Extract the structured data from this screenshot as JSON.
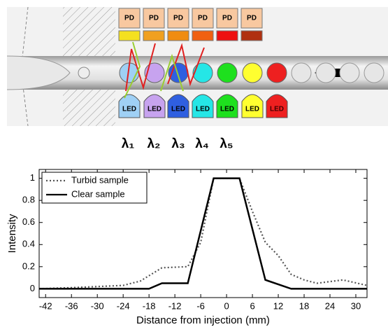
{
  "diagram": {
    "pd_labels": [
      "PD",
      "PD",
      "PD",
      "PD",
      "PD",
      "PD"
    ],
    "led_labels": [
      "LED",
      "LED",
      "LED",
      "LED",
      "LED",
      "LED",
      "LED"
    ],
    "wavelengths": [
      "λ₁",
      "λ₂",
      "λ₃",
      "λ₄",
      "λ₅"
    ]
  },
  "chart_data": {
    "type": "line",
    "xlabel": "Distance from injection (mm)",
    "ylabel": "Intensity",
    "xlim": [
      -43.5,
      32.6
    ],
    "ylim": [
      -0.08,
      1.08
    ],
    "xticks": [
      -42,
      -36,
      -30,
      -24,
      -18,
      -12,
      -6,
      0,
      6,
      12,
      18,
      24,
      30
    ],
    "yticks": [
      0,
      0.2,
      0.4,
      0.6,
      0.8,
      1
    ],
    "legend": "upper left",
    "series": [
      {
        "name": "Turbid sample",
        "color": "#555555",
        "style": "dotted",
        "x": [
          -43.5,
          -36,
          -24,
          -20,
          -15,
          -9,
          -6,
          -3,
          3,
          6,
          9,
          12,
          15,
          18,
          21,
          27,
          32.6
        ],
        "values": [
          0,
          0.01,
          0.03,
          0.07,
          0.19,
          0.2,
          0.42,
          1,
          1,
          0.7,
          0.42,
          0.3,
          0.13,
          0.08,
          0.05,
          0.08,
          0.03
        ]
      },
      {
        "name": "Clear sample",
        "color": "#000000",
        "style": "solid",
        "x": [
          -43.5,
          -18,
          -15,
          -9,
          -3,
          3,
          9,
          15,
          32.6
        ],
        "values": [
          0,
          0,
          0.05,
          0.05,
          1,
          1,
          0.08,
          0,
          0
        ]
      }
    ]
  }
}
